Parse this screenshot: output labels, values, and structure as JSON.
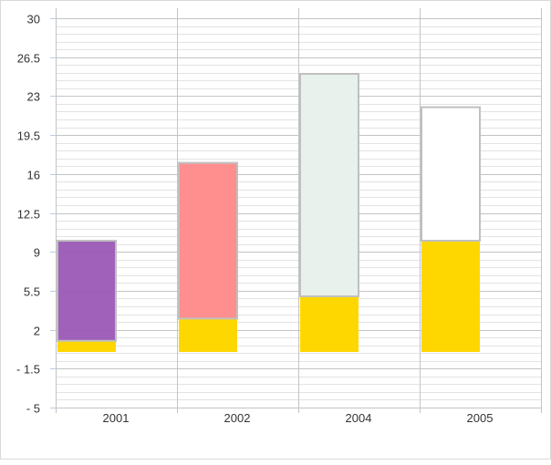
{
  "chart_data": {
    "type": "bar",
    "subtype": "floating-stacked",
    "categories": [
      "2001",
      "2002",
      "2004",
      "2005"
    ],
    "ylim": [
      -5,
      30
    ],
    "yticks": [
      "30",
      "26.5",
      "23",
      "19.5",
      "16",
      "12.5",
      "9",
      "5.5",
      "2",
      "- 1.5",
      "- 5"
    ],
    "ytick_values": [
      30,
      26.5,
      23,
      19.5,
      16,
      12.5,
      9,
      5.5,
      2,
      -1.5,
      -5
    ],
    "grid": true,
    "minor_grid_step": 0.7,
    "series": [
      {
        "values": [
          [
            0,
            1
          ],
          [
            0,
            3
          ],
          [
            0,
            5
          ],
          [
            0,
            10
          ]
        ],
        "colors": [
          "#FFD700",
          "#FFD700",
          "#FFD700",
          "#FFD700"
        ]
      },
      {
        "values": [
          [
            1,
            10
          ],
          [
            3,
            17
          ],
          [
            5,
            25
          ],
          [
            10,
            22
          ]
        ],
        "colors": [
          "#9B59B6",
          "#FF8F8F",
          "#E8F1EC",
          "#FFFFFF"
        ]
      }
    ]
  }
}
